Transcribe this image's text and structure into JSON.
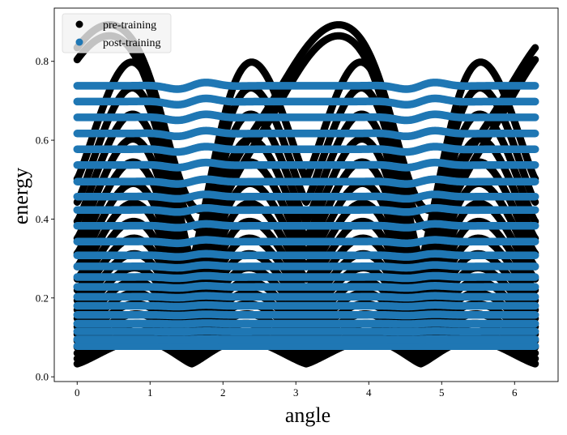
{
  "chart_data": {
    "type": "scatter",
    "xlabel": "angle",
    "ylabel": "energy",
    "xlim": [
      -0.314,
      6.597
    ],
    "ylim": [
      -0.012,
      0.935
    ],
    "xticks": [
      0,
      1,
      2,
      3,
      4,
      5,
      6
    ],
    "yticks": [
      0.0,
      0.2,
      0.4,
      0.6,
      0.8
    ],
    "legend_position": "top-left",
    "x_domain": [
      0,
      6.283
    ],
    "series": [
      {
        "name": "pre-training",
        "color": "#000000",
        "band_count": 20,
        "band_min": [
          0.033,
          0.04,
          0.047,
          0.055,
          0.064,
          0.073,
          0.083,
          0.094,
          0.106,
          0.119,
          0.133,
          0.149,
          0.166,
          0.185,
          0.206,
          0.229,
          0.256,
          0.29,
          0.33,
          0.378
        ],
        "band_max": [
          0.102,
          0.124,
          0.147,
          0.172,
          0.199,
          0.228,
          0.259,
          0.293,
          0.33,
          0.371,
          0.415,
          0.463,
          0.515,
          0.571,
          0.631,
          0.695,
          0.762,
          0.825,
          0.865,
          0.893
        ],
        "edge_value_at_0": [
          0.033,
          0.046,
          0.06,
          0.075,
          0.091,
          0.108,
          0.127,
          0.148,
          0.17,
          0.194,
          0.22,
          0.248,
          0.279,
          0.313,
          0.351,
          0.394,
          0.443,
          0.502,
          0.59,
          0.785
        ]
      },
      {
        "name": "post-training",
        "color": "#1f77b4",
        "levels": [
          0.078,
          0.095,
          0.115,
          0.135,
          0.157,
          0.18,
          0.203,
          0.228,
          0.253,
          0.28,
          0.308,
          0.343,
          0.383,
          0.423,
          0.457,
          0.495,
          0.537,
          0.577,
          0.617,
          0.658,
          0.698,
          0.738
        ]
      }
    ]
  }
}
